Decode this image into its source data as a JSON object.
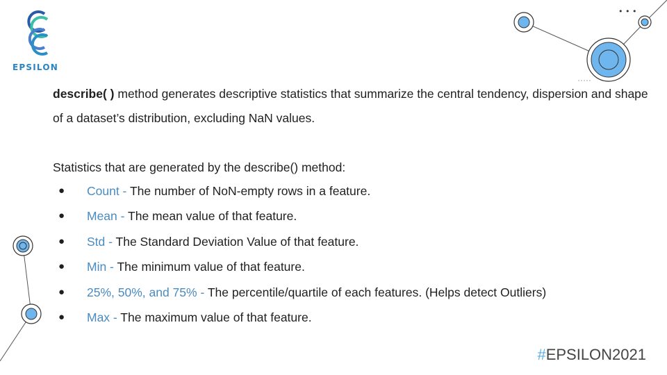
{
  "logo": {
    "text": "EPSILON"
  },
  "intro": {
    "method": "describe( )",
    "text": " method generates descriptive statistics that summarize the central tendency, dispersion and shape of a dataset’s distribution, excluding NaN values."
  },
  "stats_heading": "Statistics that are generated by the describe() method:",
  "bullet_glyph": "●",
  "stats": [
    {
      "term": "Count - ",
      "desc": "The number of NoN-empty rows in a feature."
    },
    {
      "term": "Mean - ",
      "desc": "The mean value of that feature."
    },
    {
      "term": "Std - ",
      "desc": "The Standard Deviation Value of that feature."
    },
    {
      "term": "Min - ",
      "desc": "The minimum value of that feature."
    },
    {
      "term": "25%, 50%, and 75% - ",
      "desc": " The percentile/quartile of each features. (Helps detect Outliers)"
    },
    {
      "term": "Max - ",
      "desc": "The maximum value of that feature."
    }
  ],
  "hashtag": {
    "hash": "#",
    "text": "EPSILON2021"
  },
  "dots": "• • •",
  "colors": {
    "accent": "#4a8bc0",
    "circle_fill": "#6fb6ee",
    "circle_ring": "#2b2b2b",
    "hashtag": "#5aaee8"
  }
}
